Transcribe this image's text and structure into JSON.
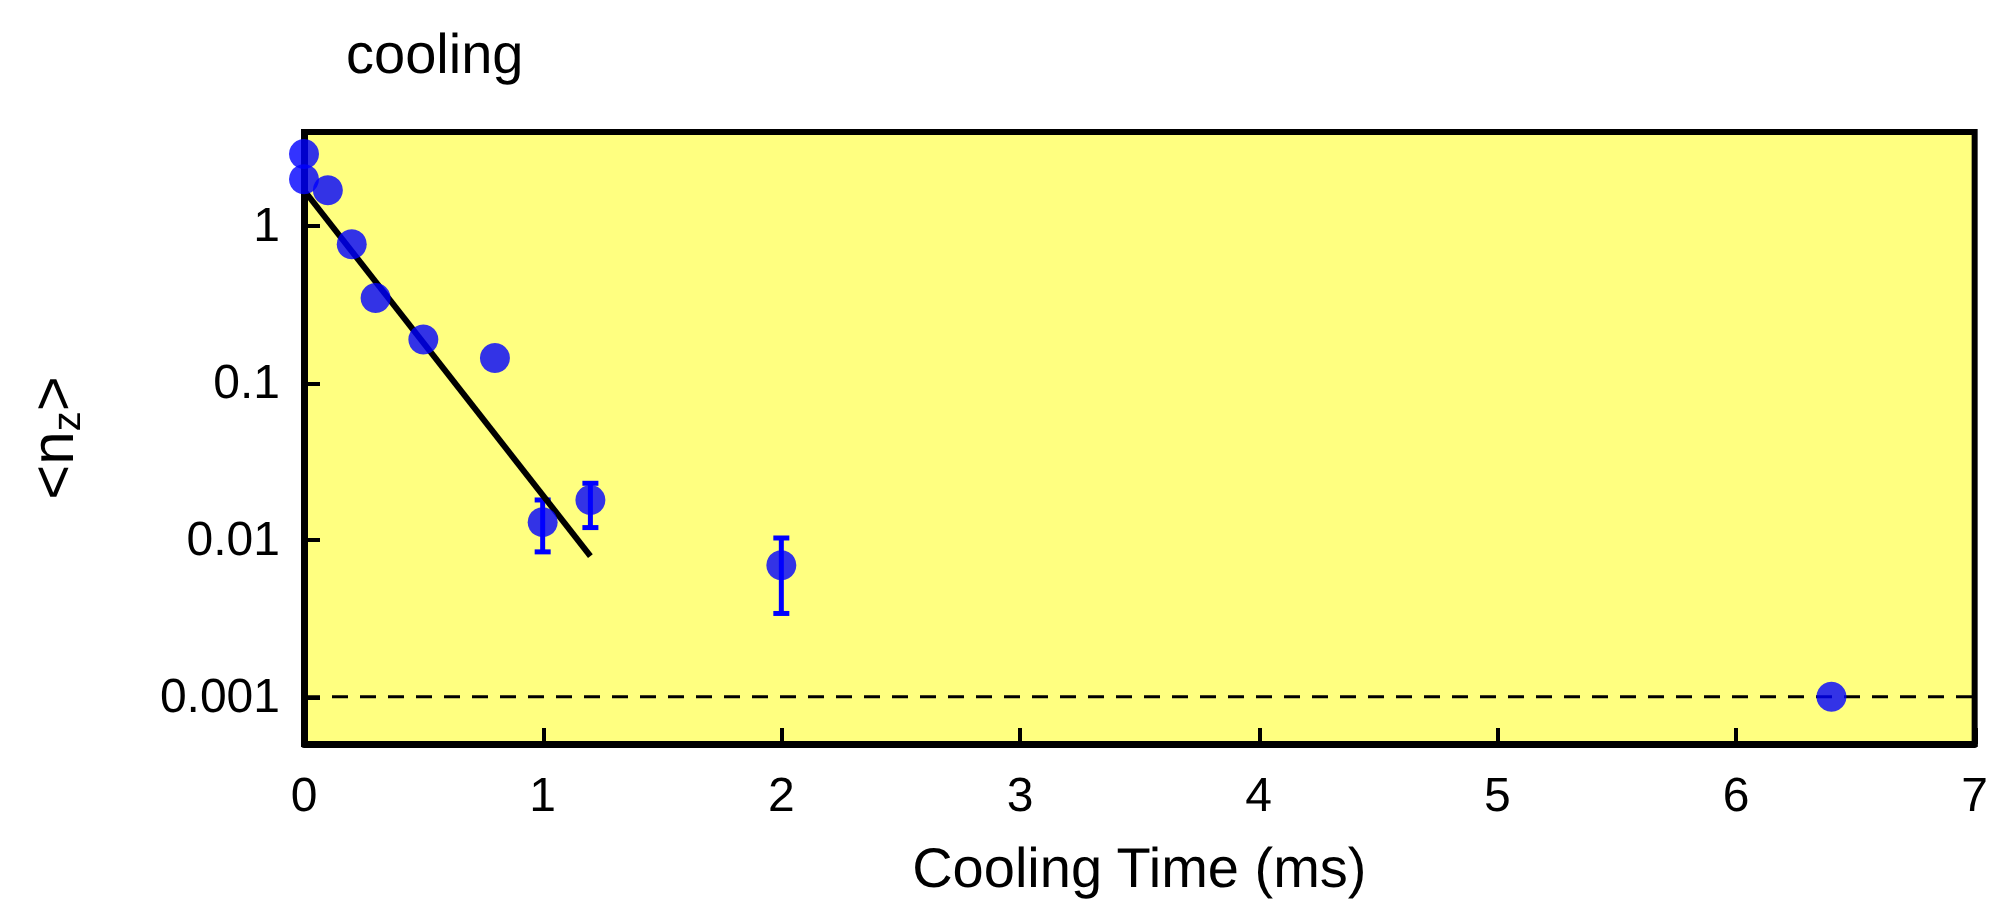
{
  "chart_data": {
    "type": "scatter",
    "title": "cooling",
    "xlabel": "Cooling Time (ms)",
    "ylabel": "<n$_{z}$>",
    "xlim": [
      0,
      7
    ],
    "xticks": [
      0,
      1,
      2,
      3,
      4,
      5,
      6,
      7
    ],
    "ylim": [
      0.0005,
      4
    ],
    "yticks": [
      0.001,
      0.01,
      0.1,
      1
    ],
    "log": "y",
    "grid": false,
    "marker": "circle",
    "series": [
      {
        "color": "#0000ff",
        "x": [
          0,
          0,
          0.1,
          0.2,
          0.3,
          0.5,
          0.8,
          1.0,
          1.2,
          2.0,
          6.4
        ],
        "values": [
          2.9,
          2.0,
          1.7,
          0.77,
          0.35,
          0.19,
          0.145,
          0.013,
          0.018,
          0.0069,
          0.001
        ],
        "errors": [
          null,
          null,
          null,
          null,
          null,
          null,
          null,
          [
            0.0084,
            0.018
          ],
          [
            0.012,
            0.023
          ],
          [
            0.0034,
            0.0103
          ],
          null
        ]
      },
      {
        "type": "line",
        "color": "#000000",
        "marker": "none",
        "line_style": "solid",
        "x": [
          0,
          1.2
        ],
        "values": [
          1.7,
          0.0079
        ]
      }
    ],
    "ref_lines": [
      {
        "axis": "y",
        "value": 0.001,
        "color": "#000000",
        "line_style": "dashed"
      }
    ]
  }
}
